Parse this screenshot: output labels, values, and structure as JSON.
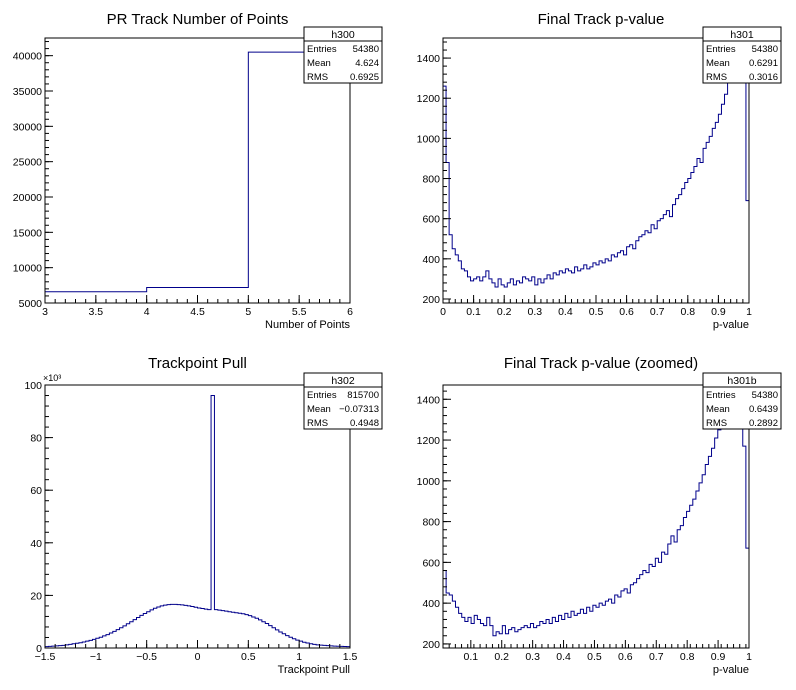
{
  "colors": {
    "histogram": "#00008b",
    "axis": "#000000",
    "background": "#ffffff"
  },
  "chart_data": [
    {
      "type": "histogram",
      "title": "PR Track Number of Points",
      "xlabel": "Number of Points",
      "ylabel": "",
      "xlim": [
        3,
        6
      ],
      "ylim": [
        5000,
        42500
      ],
      "x_ticks": [
        3,
        3.5,
        4,
        4.5,
        5,
        5.5,
        6
      ],
      "x_tick_labels": [
        "3",
        "3.5",
        "4",
        "4.5",
        "5",
        "5.5",
        "6"
      ],
      "y_ticks": [
        5000,
        10000,
        15000,
        20000,
        25000,
        30000,
        35000,
        40000
      ],
      "y_tick_labels": [
        "5000",
        "10000",
        "15000",
        "20000",
        "25000",
        "30000",
        "35000",
        "40000"
      ],
      "bin_edges": [
        3,
        4,
        5,
        6
      ],
      "values": [
        6600,
        7200,
        40500
      ],
      "stats": {
        "name": "h300",
        "rows": [
          [
            "Entries",
            "54380"
          ],
          [
            "Mean",
            "4.624"
          ],
          [
            "RMS",
            "0.6925"
          ]
        ]
      }
    },
    {
      "type": "histogram",
      "title": "Final Track p-value",
      "xlabel": "p-value",
      "ylabel": "",
      "xlim": [
        0,
        1
      ],
      "ylim": [
        180,
        1500
      ],
      "x_ticks": [
        0,
        0.1,
        0.2,
        0.3,
        0.4,
        0.5,
        0.6,
        0.7,
        0.8,
        0.9,
        1
      ],
      "x_tick_labels": [
        "0",
        "0.1",
        "0.2",
        "0.3",
        "0.4",
        "0.5",
        "0.6",
        "0.7",
        "0.8",
        "0.9",
        "1"
      ],
      "y_ticks": [
        200,
        400,
        600,
        800,
        1000,
        1200,
        1400
      ],
      "y_tick_labels": [
        "200",
        "400",
        "600",
        "800",
        "1000",
        "1200",
        "1400"
      ],
      "bin_edges_range": [
        0,
        1
      ],
      "values": [
        1260,
        880,
        520,
        450,
        420,
        390,
        350,
        340,
        310,
        290,
        300,
        310,
        290,
        310,
        340,
        300,
        280,
        260,
        300,
        270,
        260,
        280,
        300,
        270,
        290,
        280,
        310,
        300,
        290,
        310,
        270,
        300,
        280,
        300,
        320,
        300,
        330,
        320,
        340,
        330,
        350,
        340,
        330,
        360,
        340,
        350,
        370,
        350,
        360,
        380,
        370,
        390,
        380,
        400,
        390,
        420,
        410,
        430,
        440,
        420,
        460,
        470,
        450,
        490,
        510,
        520,
        540,
        530,
        570,
        550,
        590,
        600,
        620,
        640,
        610,
        670,
        700,
        720,
        750,
        780,
        800,
        830,
        860,
        900,
        880,
        950,
        980,
        1010,
        1050,
        1080,
        1120,
        1170,
        1220,
        1280,
        1300,
        1400,
        1350,
        1480,
        1400,
        690
      ],
      "stats": {
        "name": "h301",
        "rows": [
          [
            "Entries",
            "54380"
          ],
          [
            "Mean",
            "0.6291"
          ],
          [
            "RMS",
            "0.3016"
          ]
        ]
      }
    },
    {
      "type": "histogram",
      "title": "Trackpoint Pull",
      "xlabel": "Trackpoint Pull",
      "ylabel": "",
      "xlim": [
        -1.5,
        1.5
      ],
      "ylim": [
        0,
        100000
      ],
      "y_scale_label": "×10³",
      "x_ticks": [
        -1.5,
        -1,
        -0.5,
        0,
        0.5,
        1,
        1.5
      ],
      "x_tick_labels": [
        "−1.5",
        "−1",
        "−0.5",
        "0",
        "0.5",
        "1",
        "1.5"
      ],
      "y_ticks": [
        0,
        20000,
        40000,
        60000,
        80000,
        100000
      ],
      "y_tick_labels": [
        "0",
        "20",
        "40",
        "60",
        "80",
        "100"
      ],
      "bin_edges_range": [
        -1.5,
        1.5
      ],
      "values": [
        500,
        600,
        700,
        800,
        900,
        1000,
        1200,
        1400,
        1600,
        1800,
        2000,
        2300,
        2600,
        2900,
        3300,
        3700,
        4100,
        4600,
        5100,
        5700,
        6300,
        7000,
        7700,
        8400,
        9200,
        10000,
        10800,
        11600,
        12400,
        13100,
        13800,
        14500,
        15100,
        15600,
        16000,
        16300,
        16500,
        16600,
        16600,
        16500,
        16400,
        16200,
        16000,
        15800,
        15500,
        15200,
        15000,
        14800,
        14600,
        96000,
        14600,
        14400,
        14200,
        14000,
        13800,
        13600,
        13400,
        13200,
        13000,
        12700,
        12300,
        11800,
        11300,
        10700,
        10000,
        9300,
        8500,
        7700,
        6900,
        6100,
        5400,
        4700,
        4100,
        3500,
        3000,
        2600,
        2200,
        1900,
        1600,
        1400,
        1200,
        1100,
        1000,
        900,
        800,
        700,
        650,
        600,
        550,
        500
      ],
      "stats": {
        "name": "h302",
        "rows": [
          [
            "Entries",
            "815700"
          ],
          [
            "Mean",
            "−0.07313"
          ],
          [
            "RMS",
            "0.4948"
          ]
        ]
      }
    },
    {
      "type": "histogram",
      "title": "Final Track p-value (zoomed)",
      "xlabel": "p-value",
      "ylabel": "",
      "xlim": [
        0.01,
        1
      ],
      "ylim": [
        180,
        1470
      ],
      "x_ticks": [
        0.1,
        0.2,
        0.3,
        0.4,
        0.5,
        0.6,
        0.7,
        0.8,
        0.9,
        1
      ],
      "x_tick_labels": [
        "0.1",
        "0.2",
        "0.3",
        "0.4",
        "0.5",
        "0.6",
        "0.7",
        "0.8",
        "0.9",
        "1"
      ],
      "y_ticks": [
        200,
        400,
        600,
        800,
        1000,
        1200,
        1400
      ],
      "y_tick_labels": [
        "200",
        "400",
        "600",
        "800",
        "1000",
        "1200",
        "1400"
      ],
      "bin_edges_range": [
        0.01,
        1
      ],
      "values": [
        560,
        450,
        440,
        410,
        380,
        350,
        330,
        310,
        330,
        300,
        340,
        320,
        300,
        290,
        330,
        290,
        240,
        260,
        250,
        290,
        250,
        270,
        280,
        260,
        270,
        280,
        290,
        280,
        300,
        280,
        290,
        310,
        300,
        320,
        300,
        330,
        310,
        340,
        320,
        350,
        330,
        360,
        340,
        350,
        370,
        350,
        380,
        360,
        390,
        380,
        400,
        390,
        410,
        420,
        400,
        440,
        430,
        460,
        470,
        450,
        490,
        500,
        520,
        540,
        560,
        550,
        590,
        580,
        620,
        600,
        650,
        640,
        690,
        730,
        700,
        760,
        780,
        820,
        850,
        880,
        910,
        950,
        990,
        1030,
        1080,
        1120,
        1160,
        1210,
        1250,
        1280,
        1260,
        1300,
        1310,
        1420,
        1400,
        1330,
        1170,
        670
      ],
      "stats": {
        "name": "h301b",
        "rows": [
          [
            "Entries",
            "54380"
          ],
          [
            "Mean",
            "0.6439"
          ],
          [
            "RMS",
            "0.2892"
          ]
        ]
      }
    }
  ]
}
